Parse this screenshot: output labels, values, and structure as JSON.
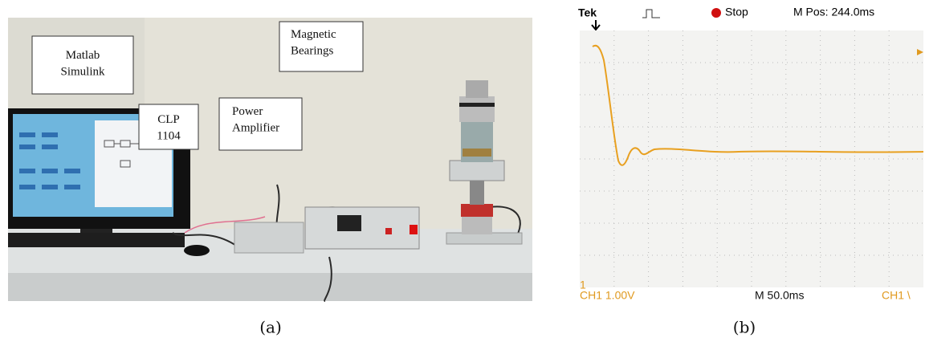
{
  "panel_a": {
    "labels": [
      "Matlab\nSimulink",
      "CLP\n1104",
      "Power\nAmplifier",
      "Magnetic\nBearings"
    ],
    "caption": "(a)"
  },
  "panel_b": {
    "header": {
      "brand": "Tek",
      "state": "Stop",
      "position": "M Pos: 244.0ms"
    },
    "footer": {
      "channel_marker": "1",
      "channel_scale": "CH1  1.00V",
      "timebase": "M 50.0ms",
      "trigger": "CH1 \\"
    },
    "caption": "(b)"
  }
}
